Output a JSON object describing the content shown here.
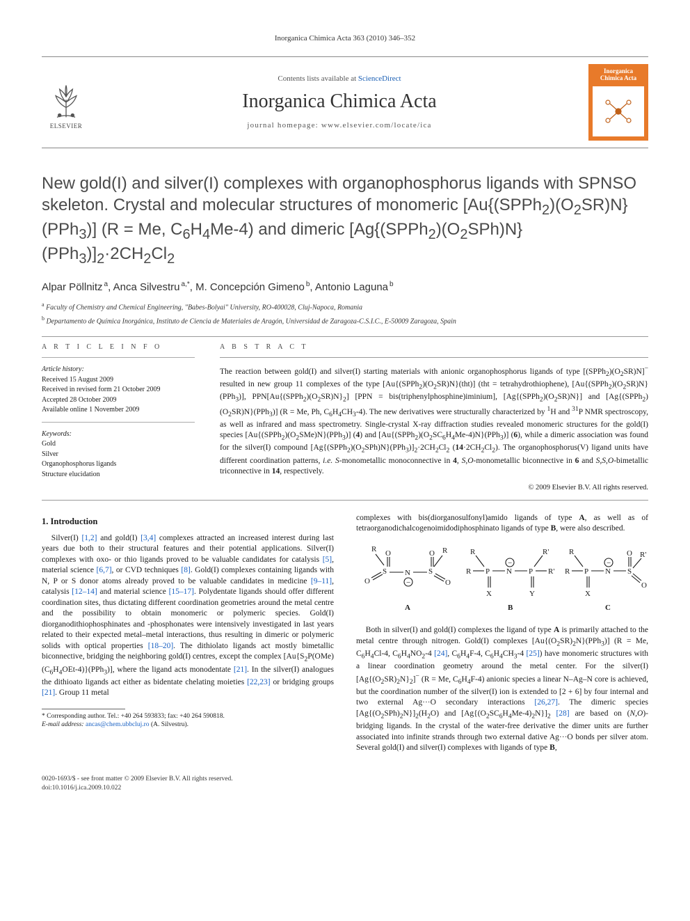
{
  "running_head": "Inorganica Chimica Acta 363 (2010) 346–352",
  "masthead": {
    "publisher": "ELSEVIER",
    "contents_prefix": "Contents lists available at ",
    "contents_link": "ScienceDirect",
    "journal": "Inorganica Chimica Acta",
    "homepage_prefix": "journal homepage: ",
    "homepage": "www.elsevier.com/locate/ica",
    "cover_title": "Inorganica Chimica Acta",
    "cover_bg": "#e87a2a"
  },
  "title_html": "New gold(I) and silver(I) complexes with organophosphorus ligands with SPNSO skeleton. Crystal and molecular structures of monomeric [Au{(SPPh<sub>2</sub>)(O<sub>2</sub>SR)N}(PPh<sub>3</sub>)] (R = Me, C<sub>6</sub>H<sub>4</sub>Me-4) and dimeric [Ag{(SPPh<sub>2</sub>)(O<sub>2</sub>SPh)N}(PPh<sub>3</sub>)]<sub>2</sub>·2CH<sub>2</sub>Cl<sub>2</sub>",
  "authors_html": "Alpar Pöllnitz<sup> a</sup>, Anca Silvestru<sup> a,*</sup>, M. Concepción Gimeno<sup> b</sup>, Antonio Laguna<sup> b</sup>",
  "affiliations": [
    "Faculty of Chemistry and Chemical Engineering, \"Babes-Bolyai\" University, RO-400028, Cluj-Napoca, Romania",
    "Departamento de Química Inorgánica, Instituto de Ciencia de Materiales de Aragón, Universidad de Zaragoza-C.S.I.C., E-50009 Zaragoza, Spain"
  ],
  "affil_markers": [
    "a",
    "b"
  ],
  "article_info": {
    "label": "A R T I C L E   I N F O",
    "history_label": "Article history:",
    "history": [
      "Received 15 August 2009",
      "Received in revised form 21 October 2009",
      "Accepted 28 October 2009",
      "Available online 1 November 2009"
    ],
    "keywords_label": "Keywords:",
    "keywords": [
      "Gold",
      "Silver",
      "Organophosphorus ligands",
      "Structure elucidation"
    ]
  },
  "abstract": {
    "label": "A B S T R A C T",
    "body_html": "The reaction between gold(I) and silver(I) starting materials with anionic organophosphorus ligands of type [(SPPh<sub>2</sub>)(O<sub>2</sub>SR)N]<sup>−</sup> resulted in new group 11 complexes of the type [Au{(SPPh<sub>2</sub>)(O<sub>2</sub>SR)N}(tht)] (tht = tetrahydrothiophene), [Au{(SPPh<sub>2</sub>)(O<sub>2</sub>SR)N}(PPh<sub>3</sub>)], PPN[Au{(SPPh<sub>2</sub>)(O<sub>2</sub>SR)N}<sub>2</sub>] [PPN = bis(triphenylphosphine)iminium], [Ag{(SPPh<sub>2</sub>)(O<sub>2</sub>SR)N}] and [Ag{(SPPh<sub>2</sub>)(O<sub>2</sub>SR)N}(PPh<sub>3</sub>)] (R = Me, Ph, C<sub>6</sub>H<sub>4</sub>CH<sub>3</sub>-4). The new derivatives were structurally characterized by <sup>1</sup>H and <sup>31</sup>P NMR spectroscopy, as well as infrared and mass spectrometry. Single-crystal X-ray diffraction studies revealed monomeric structures for the gold(I) species [Au{(SPPh<sub>2</sub>)(O<sub>2</sub>SMe)N}(PPh<sub>3</sub>)] (<b>4</b>) and [Au{(SPPh<sub>2</sub>)(O<sub>2</sub>SC<sub>6</sub>H<sub>4</sub>Me-4)N}(PPh<sub>3</sub>)] (<b>6</b>), while a dimeric association was found for the silver(I) compound [Ag{(SPPh<sub>2</sub>)(O<sub>2</sub>SPh)N}(PPh<sub>3</sub>)]<sub>2</sub>·2CH<sub>2</sub>Cl<sub>2</sub> (<b>14</b>·2CH<sub>2</sub>Cl<sub>2</sub>). The organophosphorus(V) ligand units have different coordination patterns, <i>i.e.</i> <i>S</i>-monometallic monoconnective in <b>4</b>, <i>S,O</i>-monometallic biconnective in <b>6</b> and <i>S,S,O</i>-bimetallic triconnective in <b>14</b>, respectively.",
    "copyright": "© 2009 Elsevier B.V. All rights reserved."
  },
  "section1": {
    "heading": "1. Introduction",
    "p1_html": "Silver(I) <span class='ref'>[1,2]</span> and gold(I) <span class='ref'>[3,4]</span> complexes attracted an increased interest during last years due both to their structural features and their potential applications. Silver(I) complexes with oxo- or thio ligands proved to be valuable candidates for catalysis <span class='ref'>[5]</span>, material science <span class='ref'>[6,7]</span>, or CVD techniques <span class='ref'>[8]</span>. Gold(I) complexes containing ligands with N, P or S donor atoms already proved to be valuable candidates in medicine <span class='ref'>[9–11]</span>, catalysis <span class='ref'>[12–14]</span> and material science <span class='ref'>[15–17]</span>. Polydentate ligands should offer different coordination sites, thus dictating different coordination geometries around the metal centre and the possibility to obtain monomeric or polymeric species. Gold(I) diorganodithiophosphinates and -phosphonates were intensively investigated in last years related to their expected metal–metal interactions, thus resulting in dimeric or polymeric solids with optical properties <span class='ref'>[18–20]</span>. The dithiolato ligands act mostly bimetallic biconnective, bridging the neighboring gold(I) centres, except the complex [Au{S<sub>2</sub>P(OMe)(C<sub>6</sub>H<sub>4</sub>OEt-4)}(PPh<sub>3</sub>)], where the ligand acts monodentate <span class='ref'>[21]</span>. In the silver(I) analogues the dithioato ligands act either as bidentate chelating moieties <span class='ref'>[22,23]</span> or bridging groups <span class='ref'>[21]</span>. Group 11 metal",
    "p2_html": "complexes with bis(diorganosulfonyl)amido ligands of type <b>A</b>, as well as of tetraorganodichalcogenoimidodiphosphinato ligands of type <b>B</b>, were also described.",
    "p3_html": "Both in silver(I) and gold(I) complexes the ligand of type <b>A</b> is primarily attached to the metal centre through nitrogen. Gold(I) complexes [Au{(O<sub>2</sub>SR)<sub>2</sub>N}(PPh<sub>3</sub>)] (R = Me, C<sub>6</sub>H<sub>4</sub>Cl-4, C<sub>6</sub>H<sub>4</sub>NO<sub>2</sub>-4 <span class='ref'>[24]</span>, C<sub>6</sub>H<sub>4</sub>F-4, C<sub>6</sub>H<sub>4</sub>CH<sub>3</sub>-4 <span class='ref'>[25]</span>) have monomeric structures with a linear coordination geometry around the metal center. For the silver(I) [Ag{(O<sub>2</sub>SR)<sub>2</sub>N}<sub>2</sub>]<sup>−</sup> (R = Me, C<sub>6</sub>H<sub>4</sub>F-4) anionic species a linear N–Ag–N core is achieved, but the coordination number of the silver(I) ion is extended to [2 + 6] by four internal and two external Ag···O secondary interactions <span class='ref'>[26,27]</span>. The dimeric species [Ag{(O<sub>2</sub>SPh)<sub>2</sub>N}]<sub>2</sub>(H<sub>2</sub>O) and [Ag{(O<sub>2</sub>SC<sub>6</sub>H<sub>4</sub>Me-4)<sub>2</sub>N}]<sub>2</sub> <span class='ref'>[28]</span> are based on (<i>N,O</i>)-bridging ligands. In the crystal of the water-free derivative the dimer units are further associated into infinite strands through two external dative Ag···O bonds per silver atom. Several gold(I) and silver(I) complexes with ligands of type <b>B</b>,"
  },
  "scheme": {
    "labels": [
      "A",
      "B",
      "C"
    ],
    "R": "R",
    "Rp": "R'",
    "atoms": {
      "S": "S",
      "O": "O",
      "N": "N",
      "P": "P",
      "X": "X",
      "Y": "Y"
    }
  },
  "footnote": {
    "corr": "* Corresponding author. Tel.: +40 264 593833; fax: +40 264 590818.",
    "email_label": "E-mail address:",
    "email": "ancas@chem.ubbcluj.ro",
    "email_who": "(A. Silvestru)."
  },
  "footer": {
    "issn_line": "0020-1693/$ - see front matter © 2009 Elsevier B.V. All rights reserved.",
    "doi_line": "doi:10.1016/j.ica.2009.10.022"
  },
  "colors": {
    "text": "#1a1a1a",
    "link": "#1a5fb4",
    "ref": "#1860c3",
    "rule": "#999999",
    "cover_bg": "#e87a2a",
    "title_gray": "#4a4a4a"
  },
  "typography": {
    "body_pt": 11.5,
    "title_pt": 24,
    "journal_pt": 28,
    "meta_pt": 10,
    "footnote_pt": 9.5
  }
}
